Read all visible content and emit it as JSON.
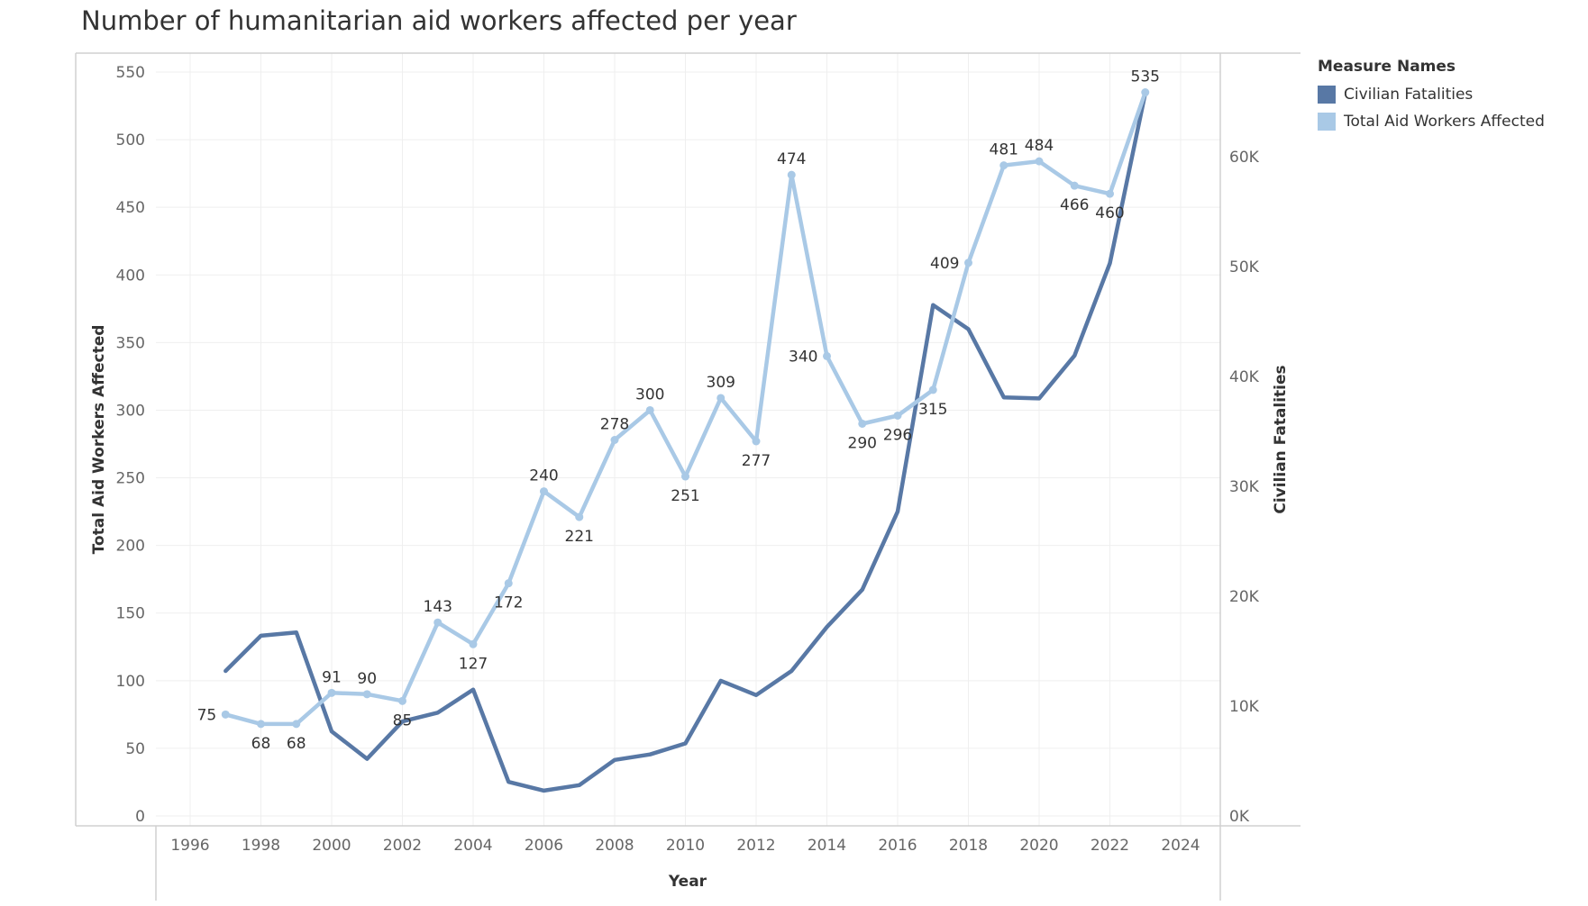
{
  "title": "Number of humanitarian aid workers affected per year",
  "legend": {
    "title": "Measure Names",
    "items": [
      {
        "label": "Civilian Fatalities",
        "color": "#5878a5"
      },
      {
        "label": "Total Aid Workers Affected",
        "color": "#a9c9e6"
      }
    ]
  },
  "chart_data": {
    "type": "line",
    "title": "Number of humanitarian aid workers affected per year",
    "xlabel": "Year",
    "ylabel_left": "Total Aid Workers Affected",
    "ylabel_right": "Civilian Fatalities",
    "xlim": [
      1995,
      2025
    ],
    "ylim_left": [
      0,
      550
    ],
    "ylim_right": [
      0,
      66000
    ],
    "x_ticks": [
      1996,
      1998,
      2000,
      2002,
      2004,
      2006,
      2008,
      2010,
      2012,
      2014,
      2016,
      2018,
      2020,
      2022,
      2024
    ],
    "y_ticks_left": [
      0,
      50,
      100,
      150,
      200,
      250,
      300,
      350,
      400,
      450,
      500,
      550
    ],
    "y_ticks_right": [
      {
        "value": 0,
        "label": "0K"
      },
      {
        "value": 10000,
        "label": "10K"
      },
      {
        "value": 20000,
        "label": "20K"
      },
      {
        "value": 30000,
        "label": "30K"
      },
      {
        "value": 40000,
        "label": "40K"
      },
      {
        "value": 50000,
        "label": "50K"
      },
      {
        "value": 60000,
        "label": "60K"
      }
    ],
    "grid": true,
    "legend_position": "right",
    "series": [
      {
        "name": "Civilian Fatalities",
        "axis": "right",
        "color": "#5878a5",
        "markers": false,
        "x": [
          1997,
          1998,
          1999,
          2000,
          2001,
          2002,
          2003,
          2004,
          2005,
          2006,
          2007,
          2008,
          2009,
          2010,
          2011,
          2012,
          2013,
          2014,
          2015,
          2016,
          2017,
          2018,
          2019,
          2020,
          2021,
          2022,
          2023
        ],
        "values": [
          13200,
          16400,
          16700,
          7700,
          5200,
          8600,
          9400,
          11500,
          3100,
          2300,
          2800,
          5100,
          5600,
          6600,
          12300,
          11000,
          13200,
          17200,
          20600,
          27700,
          46500,
          44300,
          38100,
          38000,
          41900,
          50300,
          65800
        ]
      },
      {
        "name": "Total Aid Workers Affected",
        "axis": "left",
        "color": "#a9c9e6",
        "markers": true,
        "x": [
          1997,
          1998,
          1999,
          2000,
          2001,
          2002,
          2003,
          2004,
          2005,
          2006,
          2007,
          2008,
          2009,
          2010,
          2011,
          2012,
          2013,
          2014,
          2015,
          2016,
          2017,
          2018,
          2019,
          2020,
          2021,
          2022,
          2023
        ],
        "values": [
          75,
          68,
          68,
          91,
          90,
          85,
          143,
          127,
          172,
          240,
          221,
          278,
          300,
          251,
          309,
          277,
          474,
          340,
          290,
          296,
          315,
          409,
          481,
          484,
          466,
          460,
          535
        ],
        "data_labels": [
          "75",
          "68",
          "68",
          "91",
          "90",
          "85",
          "143",
          "127",
          "172",
          "240",
          "221",
          "278",
          "300",
          "251",
          "309",
          "277",
          "474",
          "340",
          "290",
          "296",
          "315",
          "409",
          "481",
          "484",
          "466",
          "460",
          "535"
        ],
        "label_positions": [
          "left",
          "below",
          "below",
          "above",
          "above",
          "below",
          "above",
          "below",
          "below",
          "above",
          "below",
          "above",
          "above",
          "below",
          "above",
          "below",
          "above",
          "left",
          "below",
          "below",
          "below",
          "left",
          "above",
          "above",
          "below",
          "below",
          "above"
        ]
      }
    ]
  }
}
